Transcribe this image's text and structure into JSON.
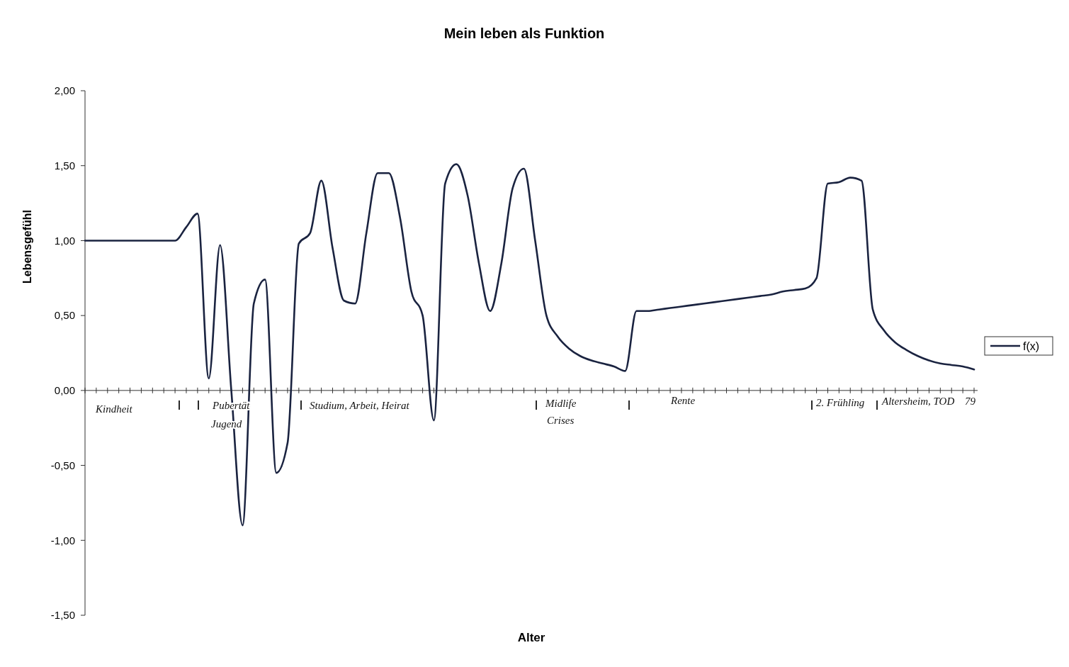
{
  "chart_data": {
    "type": "line",
    "title": "Mein leben als Funktion",
    "xlabel": "Alter",
    "ylabel": "Lebensgefühl",
    "categories": [
      null,
      null,
      null,
      null,
      null,
      null,
      null,
      null,
      null,
      null,
      null,
      null,
      null,
      null,
      null,
      null,
      null,
      null,
      null,
      null,
      null,
      null,
      null,
      null,
      null,
      null,
      null,
      null,
      null,
      null,
      null,
      null,
      null,
      null,
      null,
      null,
      null,
      null,
      null,
      null,
      null,
      null,
      null,
      null,
      null,
      null,
      null,
      null,
      null,
      null,
      null,
      null,
      null,
      null,
      null,
      null,
      null,
      null,
      null,
      null,
      null,
      null,
      null,
      null,
      null,
      null,
      null,
      null,
      null,
      null,
      null,
      null,
      null,
      null,
      null,
      null,
      null,
      null,
      null,
      null
    ],
    "series": [
      {
        "name": "f(x)",
        "color": "#1a2340",
        "values": [
          1.0,
          1.0,
          1.0,
          1.0,
          1.0,
          1.0,
          1.0,
          1.0,
          1.0,
          1.09,
          1.18,
          0.08,
          0.97,
          0.0,
          -0.9,
          0.58,
          0.74,
          -0.55,
          -0.35,
          0.98,
          1.05,
          1.4,
          0.95,
          0.6,
          0.58,
          1.05,
          1.45,
          1.45,
          1.15,
          0.66,
          0.5,
          -0.2,
          1.38,
          1.51,
          1.3,
          0.85,
          0.53,
          0.85,
          1.35,
          1.48,
          1.0,
          0.5,
          0.36,
          0.28,
          0.23,
          0.2,
          0.18,
          0.16,
          0.13,
          0.53,
          0.53,
          0.54,
          0.55,
          0.56,
          0.57,
          0.58,
          0.59,
          0.6,
          0.61,
          0.62,
          0.63,
          0.64,
          0.66,
          0.67,
          0.68,
          0.75,
          1.38,
          1.39,
          1.42,
          1.4,
          0.54,
          0.4,
          0.32,
          0.27,
          0.23,
          0.2,
          0.18,
          0.17,
          0.16,
          0.14
        ]
      }
    ],
    "ylim": [
      -1.5,
      2
    ],
    "yticks": [
      {
        "value": -1.5,
        "label": "-1,50"
      },
      {
        "value": -1,
        "label": "-1,00"
      },
      {
        "value": -0.5,
        "label": "-0,50"
      },
      {
        "value": 0,
        "label": "0,00"
      },
      {
        "value": 0.5,
        "label": "0,50"
      },
      {
        "value": 1,
        "label": "1,00"
      },
      {
        "value": 1.5,
        "label": "1,50"
      },
      {
        "value": 2,
        "label": "2,00"
      }
    ],
    "annotations": [
      "Kindheit",
      "Pubertät",
      "Jugend",
      "Studium, Arbeit, Heirat",
      "Midlife",
      "Crises",
      "Rente",
      "2. Frühling",
      "Altersheim, TOD",
      "79"
    ],
    "legend": "right",
    "line_style": "solid"
  }
}
